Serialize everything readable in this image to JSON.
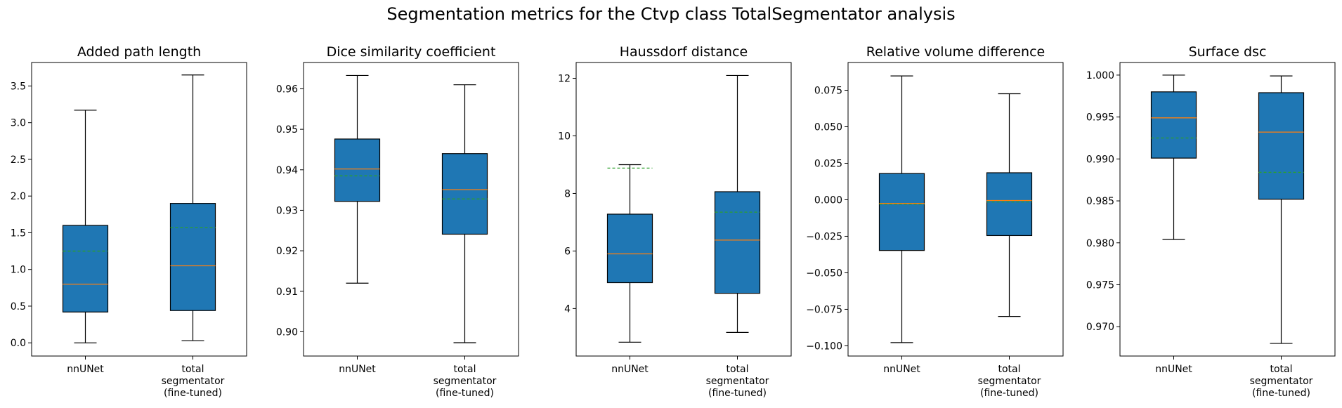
{
  "figure": {
    "title": "Segmentation metrics for the Ctvp class TotalSegmentator analysis"
  },
  "colors": {
    "box_fill": "#1f77b4",
    "median": "#ff7f0e",
    "mean": "#2ca02c",
    "line": "#000000"
  },
  "chart_data": [
    {
      "type": "box",
      "title": "Added path length",
      "categories": [
        "nnUNet",
        "total\nsegmentator\n(fine-tuned)"
      ],
      "ylim": [
        -0.18,
        3.82
      ],
      "yticks": [
        0.0,
        0.5,
        1.0,
        1.5,
        2.0,
        2.5,
        3.0,
        3.5
      ],
      "ytick_labels": [
        "0.0",
        "0.5",
        "1.0",
        "1.5",
        "2.0",
        "2.5",
        "3.0",
        "3.5"
      ],
      "grid": false,
      "boxes": [
        {
          "whislo": 0.0,
          "q1": 0.42,
          "med": 0.8,
          "q3": 1.6,
          "whishi": 3.17,
          "mean": 1.25
        },
        {
          "whislo": 0.03,
          "q1": 0.44,
          "med": 1.05,
          "q3": 1.9,
          "whishi": 3.65,
          "mean": 1.57
        }
      ]
    },
    {
      "type": "box",
      "title": "Dice similarity coefficient",
      "categories": [
        "nnUNet",
        "total\nsegmentator\n(fine-tuned)"
      ],
      "ylim": [
        0.894,
        0.9665
      ],
      "yticks": [
        0.9,
        0.91,
        0.92,
        0.93,
        0.94,
        0.95,
        0.96
      ],
      "ytick_labels": [
        "0.90",
        "0.91",
        "0.92",
        "0.93",
        "0.94",
        "0.95",
        "0.96"
      ],
      "grid": false,
      "boxes": [
        {
          "whislo": 0.912,
          "q1": 0.9322,
          "med": 0.9402,
          "q3": 0.9476,
          "whishi": 0.9633,
          "mean": 0.9385
        },
        {
          "whislo": 0.8973,
          "q1": 0.9241,
          "med": 0.9351,
          "q3": 0.944,
          "whishi": 0.961,
          "mean": 0.9328
        }
      ]
    },
    {
      "type": "box",
      "title": "Haussdorf distance",
      "categories": [
        "nnUNet",
        "total\nsegmentator\n(fine-tuned)"
      ],
      "ylim": [
        2.35,
        12.55
      ],
      "yticks": [
        4,
        6,
        8,
        10,
        12
      ],
      "ytick_labels": [
        "4",
        "6",
        "8",
        "10",
        "12"
      ],
      "grid": false,
      "boxes": [
        {
          "whislo": 2.83,
          "q1": 4.9,
          "med": 5.9,
          "q3": 7.28,
          "whishi": 9.0,
          "mean": 8.88
        },
        {
          "whislo": 3.17,
          "q1": 4.53,
          "med": 6.38,
          "q3": 8.06,
          "whishi": 12.1,
          "mean": 7.35
        }
      ]
    },
    {
      "type": "box",
      "title": "Relative volume difference",
      "categories": [
        "nnUNet",
        "total\nsegmentator\n(fine-tuned)"
      ],
      "ylim": [
        -0.107,
        0.094
      ],
      "yticks": [
        -0.1,
        -0.075,
        -0.05,
        -0.025,
        0.0,
        0.025,
        0.05,
        0.075
      ],
      "ytick_labels": [
        "−0.100",
        "−0.075",
        "−0.050",
        "−0.025",
        "0.000",
        "0.025",
        "0.050",
        "0.075"
      ],
      "grid": false,
      "boxes": [
        {
          "whislo": -0.0978,
          "q1": -0.0347,
          "med": -0.0025,
          "q3": 0.018,
          "whishi": 0.0848,
          "mean": -0.003
        },
        {
          "whislo": -0.0799,
          "q1": -0.0245,
          "med": -0.0005,
          "q3": 0.0185,
          "whishi": 0.0726,
          "mean": -0.0015
        }
      ]
    },
    {
      "type": "box",
      "title": "Surface dsc",
      "categories": [
        "nnUNet",
        "total\nsegmentator\n(fine-tuned)"
      ],
      "ylim": [
        0.9665,
        1.0015
      ],
      "yticks": [
        0.97,
        0.975,
        0.98,
        0.985,
        0.99,
        0.995,
        1.0
      ],
      "ytick_labels": [
        "0.970",
        "0.975",
        "0.980",
        "0.985",
        "0.990",
        "0.995",
        "1.000"
      ],
      "grid": false,
      "boxes": [
        {
          "whislo": 0.9804,
          "q1": 0.9901,
          "med": 0.9949,
          "q3": 0.998,
          "whishi": 1.0,
          "mean": 0.9925
        },
        {
          "whislo": 0.968,
          "q1": 0.9852,
          "med": 0.9932,
          "q3": 0.9979,
          "whishi": 0.9999,
          "mean": 0.9884
        }
      ]
    }
  ]
}
